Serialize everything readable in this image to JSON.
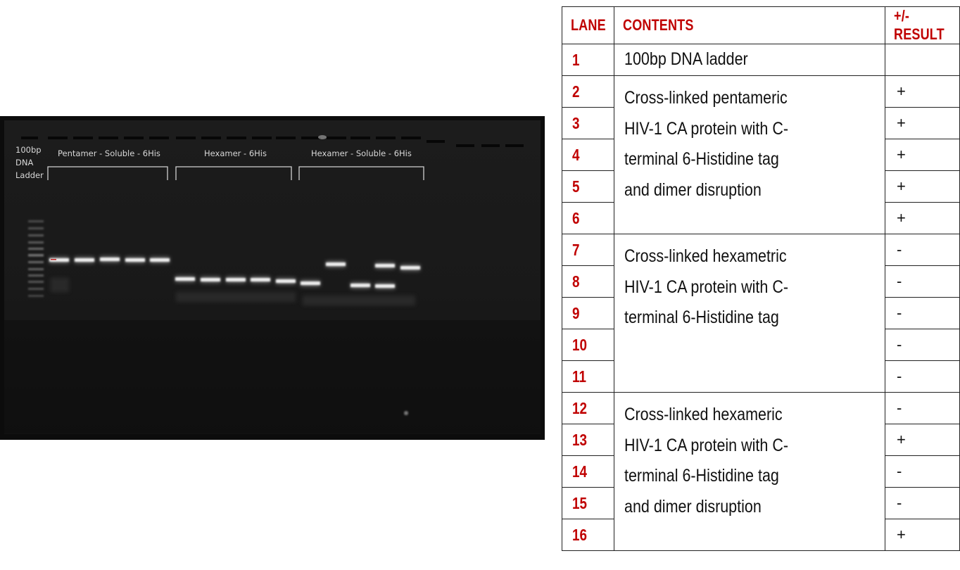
{
  "gel": {
    "ladder_label_lines": [
      "100bp",
      "DNA",
      "Ladder"
    ],
    "groups": [
      {
        "label": "Pentamer - Soluble - 6His"
      },
      {
        "label": "Hexamer - 6His"
      },
      {
        "label": "Hexamer - Soluble - 6His"
      }
    ]
  },
  "table": {
    "headers": {
      "lane": "LANE",
      "contents": "CONTENTS",
      "result": "+/- RESULT"
    },
    "row1": {
      "lane": "1",
      "contents": "100bp DNA ladder",
      "result": ""
    },
    "group1": {
      "contents": "Cross-linked pentameric\nHIV-1 CA protein with C-\nterminal 6-Histidine tag\nand dimer disruption",
      "rows": [
        {
          "lane": "2",
          "result": "+"
        },
        {
          "lane": "3",
          "result": "+"
        },
        {
          "lane": "4",
          "result": "+"
        },
        {
          "lane": "5",
          "result": "+"
        },
        {
          "lane": "6",
          "result": "+"
        }
      ]
    },
    "group2": {
      "contents": "Cross-linked hexametric\nHIV-1 CA protein with C-\nterminal 6-Histidine tag",
      "rows": [
        {
          "lane": "7",
          "result": "-"
        },
        {
          "lane": "8",
          "result": "-"
        },
        {
          "lane": "9",
          "result": "-"
        },
        {
          "lane": "10",
          "result": "-"
        },
        {
          "lane": "11",
          "result": "-"
        }
      ]
    },
    "group3": {
      "contents": "Cross-linked hexameric\nHIV-1 CA protein with C-\nterminal 6-Histidine tag\nand dimer disruption",
      "rows": [
        {
          "lane": "12",
          "result": "-"
        },
        {
          "lane": "13",
          "result": "+"
        },
        {
          "lane": "14",
          "result": "-"
        },
        {
          "lane": "15",
          "result": "-"
        },
        {
          "lane": "16",
          "result": "+"
        }
      ]
    }
  }
}
